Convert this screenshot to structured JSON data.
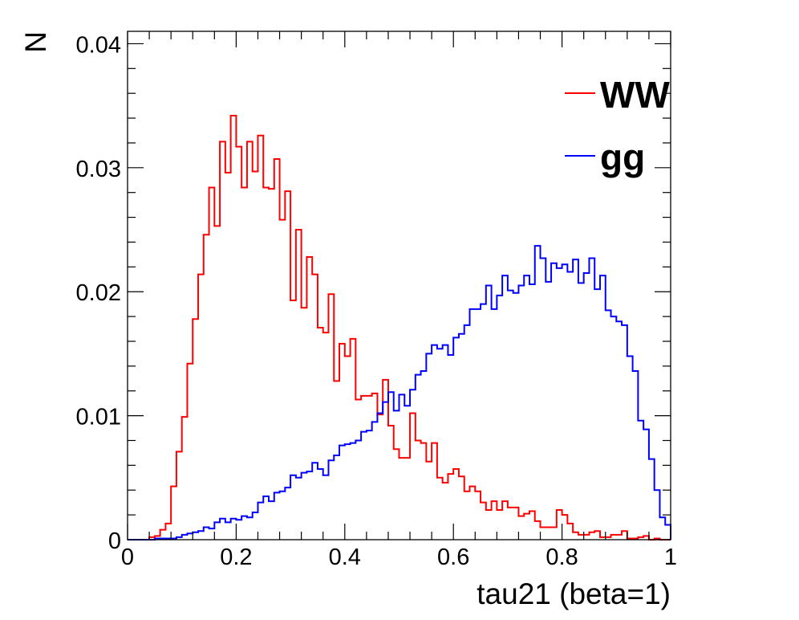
{
  "chart_data": {
    "type": "histogram",
    "xlabel": "tau21 (beta=1)",
    "ylabel": "N",
    "xlim": [
      0,
      1
    ],
    "ylim": [
      0,
      0.041
    ],
    "x_ticks": [
      0,
      0.2,
      0.4,
      0.6,
      0.8,
      1
    ],
    "x_tick_labels": [
      "0",
      "0.2",
      "0.4",
      "0.6",
      "0.8",
      "1"
    ],
    "y_ticks": [
      0,
      0.01,
      0.02,
      0.03,
      0.04
    ],
    "y_tick_labels": [
      "0",
      "0.01",
      "0.02",
      "0.03",
      "0.04"
    ],
    "bin_width": 0.01,
    "grid": false,
    "legend_position": "top-right",
    "series": [
      {
        "name": "WW",
        "color": "#ff0000",
        "values": [
          0,
          0,
          0,
          0,
          0.0002,
          0.0003,
          0.0008,
          0.0013,
          0.0043,
          0.0071,
          0.0099,
          0.0142,
          0.0178,
          0.0214,
          0.0246,
          0.0284,
          0.0253,
          0.0321,
          0.0296,
          0.0342,
          0.0317,
          0.0284,
          0.0321,
          0.0297,
          0.0326,
          0.0284,
          0.0283,
          0.0307,
          0.0258,
          0.0281,
          0.0193,
          0.025,
          0.0187,
          0.0228,
          0.0214,
          0.0171,
          0.0167,
          0.0198,
          0.0128,
          0.0158,
          0.0148,
          0.0162,
          0.0113,
          0.0116,
          0.0116,
          0.0118,
          0.0101,
          0.0129,
          0.0092,
          0.0073,
          0.0066,
          0.0066,
          0.0102,
          0.008,
          0.0078,
          0.0063,
          0.0078,
          0.005,
          0.0046,
          0.0053,
          0.0057,
          0.0051,
          0.0039,
          0.0043,
          0.0039,
          0.003,
          0.0024,
          0.0031,
          0.0024,
          0.0031,
          0.0026,
          0.0026,
          0.0019,
          0.0021,
          0.0023,
          0.0015,
          0.001,
          0.001,
          0.001,
          0.0024,
          0.002,
          0.0013,
          0.0006,
          0.0004,
          0.0004,
          0.0006,
          0.0007,
          0.0002,
          0.0002,
          0.0004,
          0.0004,
          0.0007,
          0.0001,
          0.0001,
          0.0002,
          0.0003,
          0,
          0.0001,
          0,
          0
        ]
      },
      {
        "name": "gg",
        "color": "#0000ff",
        "values": [
          0,
          0,
          0,
          0,
          0,
          0.0001,
          0.0001,
          0.0001,
          0.0001,
          0.0002,
          0.0004,
          0.0005,
          0.0006,
          0.0007,
          0.001,
          0.0009,
          0.0014,
          0.0017,
          0.0014,
          0.0017,
          0.0016,
          0.0019,
          0.0018,
          0.0022,
          0.003,
          0.0035,
          0.0031,
          0.0038,
          0.0039,
          0.0042,
          0.0052,
          0.005,
          0.0054,
          0.0055,
          0.0062,
          0.0057,
          0.0052,
          0.0064,
          0.0068,
          0.0076,
          0.0077,
          0.0078,
          0.008,
          0.0087,
          0.0088,
          0.0095,
          0.0102,
          0.0111,
          0.0119,
          0.0104,
          0.0117,
          0.0108,
          0.0121,
          0.0133,
          0.0136,
          0.015,
          0.0157,
          0.0154,
          0.0157,
          0.0149,
          0.0163,
          0.0166,
          0.0173,
          0.0186,
          0.0186,
          0.019,
          0.0205,
          0.0186,
          0.0197,
          0.0213,
          0.0201,
          0.0199,
          0.0205,
          0.0213,
          0.0206,
          0.0237,
          0.0227,
          0.0208,
          0.0223,
          0.0219,
          0.0222,
          0.0216,
          0.0226,
          0.0207,
          0.0215,
          0.0227,
          0.0202,
          0.0213,
          0.0185,
          0.018,
          0.0176,
          0.0173,
          0.0148,
          0.0136,
          0.0096,
          0.0089,
          0.0065,
          0.004,
          0.0018,
          0.0012
        ]
      }
    ]
  }
}
